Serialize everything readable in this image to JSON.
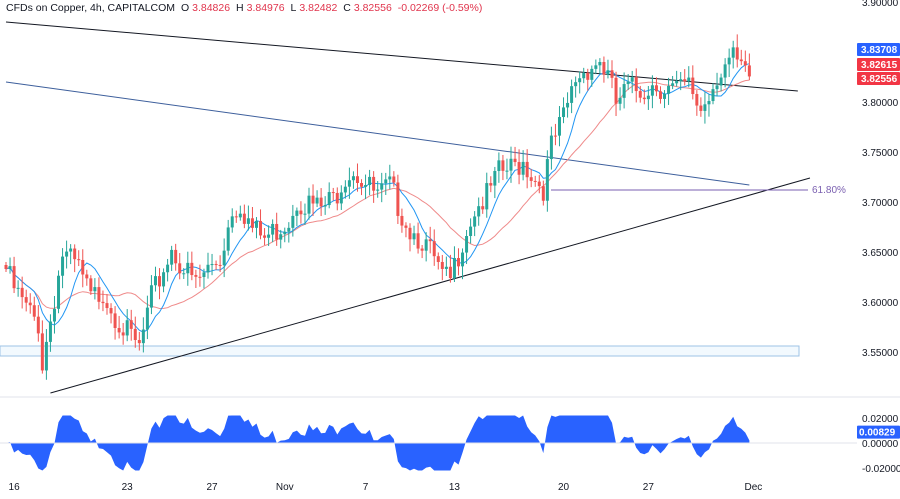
{
  "header": {
    "symbol": "CFDs on Copper, 4h, CAPITALCOM",
    "open_label": "O",
    "open": "3.84826",
    "high_label": "H",
    "high": "3.84976",
    "low_label": "L",
    "low": "3.82482",
    "close_label": "C",
    "close": "3.82556",
    "change": "-0.02269 (-0.59%)"
  },
  "colors": {
    "bull": "#26a69a",
    "bear": "#ef5350",
    "sma_fast": "#2196f3",
    "sma_slow": "#ef8a8a",
    "trendline": "#131722",
    "channel": "#3d5f9c",
    "fib": "#7a5fb0",
    "osc": "#2962ff",
    "badge_blue": "#2962ff",
    "badge_red": "#f23645"
  },
  "chart_data": {
    "type": "candlestick",
    "symbol": "CFDs on Copper",
    "timeframe": "4h",
    "x_ticks": [
      "16",
      "23",
      "27",
      "Nov",
      "7",
      "13",
      "20",
      "27",
      "Dec"
    ],
    "y_ticks": [
      "3.90000",
      "3.85000",
      "3.80000",
      "3.75000",
      "3.70000",
      "3.65000",
      "3.60000",
      "3.55000"
    ],
    "ylim": [
      3.5,
      3.9
    ],
    "osc_ticks": [
      "0.02000",
      "0.00000",
      "-0.02000"
    ],
    "osc_ylim": [
      -0.025,
      0.025
    ],
    "anchors": [
      [
        0,
        3.64
      ],
      [
        2,
        3.62
      ],
      [
        5,
        3.6
      ],
      [
        8,
        3.585
      ],
      [
        9,
        3.545
      ],
      [
        11,
        3.59
      ],
      [
        14,
        3.655
      ],
      [
        18,
        3.64
      ],
      [
        21,
        3.61
      ],
      [
        24,
        3.618
      ],
      [
        27,
        3.595
      ],
      [
        30,
        3.575
      ],
      [
        33,
        3.56
      ],
      [
        36,
        3.61
      ],
      [
        39,
        3.64
      ],
      [
        41,
        3.66
      ],
      [
        44,
        3.64
      ],
      [
        47,
        3.625
      ],
      [
        50,
        3.64
      ],
      [
        53,
        3.65
      ],
      [
        56,
        3.7
      ],
      [
        58,
        3.705
      ],
      [
        61,
        3.68
      ],
      [
        64,
        3.67
      ],
      [
        67,
        3.68
      ],
      [
        70,
        3.69
      ],
      [
        72,
        3.71
      ],
      [
        75,
        3.705
      ],
      [
        78,
        3.7
      ],
      [
        81,
        3.71
      ],
      [
        84,
        3.735
      ],
      [
        86,
        3.74
      ],
      [
        89,
        3.725
      ],
      [
        92,
        3.712
      ],
      [
        95,
        3.722
      ],
      [
        97,
        3.705
      ],
      [
        100,
        3.68
      ],
      [
        103,
        3.67
      ],
      [
        106,
        3.648
      ],
      [
        108,
        3.63
      ],
      [
        110,
        3.628
      ],
      [
        113,
        3.67
      ],
      [
        116,
        3.7
      ],
      [
        119,
        3.712
      ],
      [
        122,
        3.735
      ],
      [
        125,
        3.74
      ],
      [
        128,
        3.748
      ],
      [
        131,
        3.73
      ],
      [
        133,
        3.722
      ],
      [
        135,
        3.762
      ],
      [
        138,
        3.79
      ],
      [
        141,
        3.83
      ],
      [
        144,
        3.842
      ],
      [
        147,
        3.848
      ],
      [
        149,
        3.832
      ],
      [
        151,
        3.805
      ],
      [
        154,
        3.82
      ],
      [
        157,
        3.818
      ],
      [
        160,
        3.825
      ],
      [
        163,
        3.822
      ],
      [
        166,
        3.818
      ],
      [
        169,
        3.822
      ],
      [
        172,
        3.8
      ],
      [
        174,
        3.815
      ],
      [
        176,
        3.835
      ],
      [
        178,
        3.845
      ],
      [
        180,
        3.848
      ],
      [
        182,
        3.838
      ],
      [
        184,
        3.826
      ]
    ],
    "annotations": {
      "fib_level": 3.712,
      "fib_label": "61.80%",
      "resistance_line": [
        [
          0,
          3.88
        ],
        [
          196,
          3.811
        ]
      ],
      "channel_line": [
        [
          0,
          3.82
        ],
        [
          184,
          3.717
        ]
      ],
      "support_line": [
        [
          11,
          3.509
        ],
        [
          199,
          3.724
        ]
      ],
      "demand_zone": [
        3.546,
        3.556
      ]
    },
    "price_badges": [
      {
        "label": "3.83708",
        "value": 3.83708,
        "color": "#2962ff"
      },
      {
        "label": "3.82615",
        "value": 3.82615,
        "color": "#f23645"
      },
      {
        "label": "3.82556",
        "value": 3.82556,
        "color": "#f23645"
      }
    ],
    "osc_badge": {
      "label": "0.00829",
      "value": 0.00829
    }
  }
}
